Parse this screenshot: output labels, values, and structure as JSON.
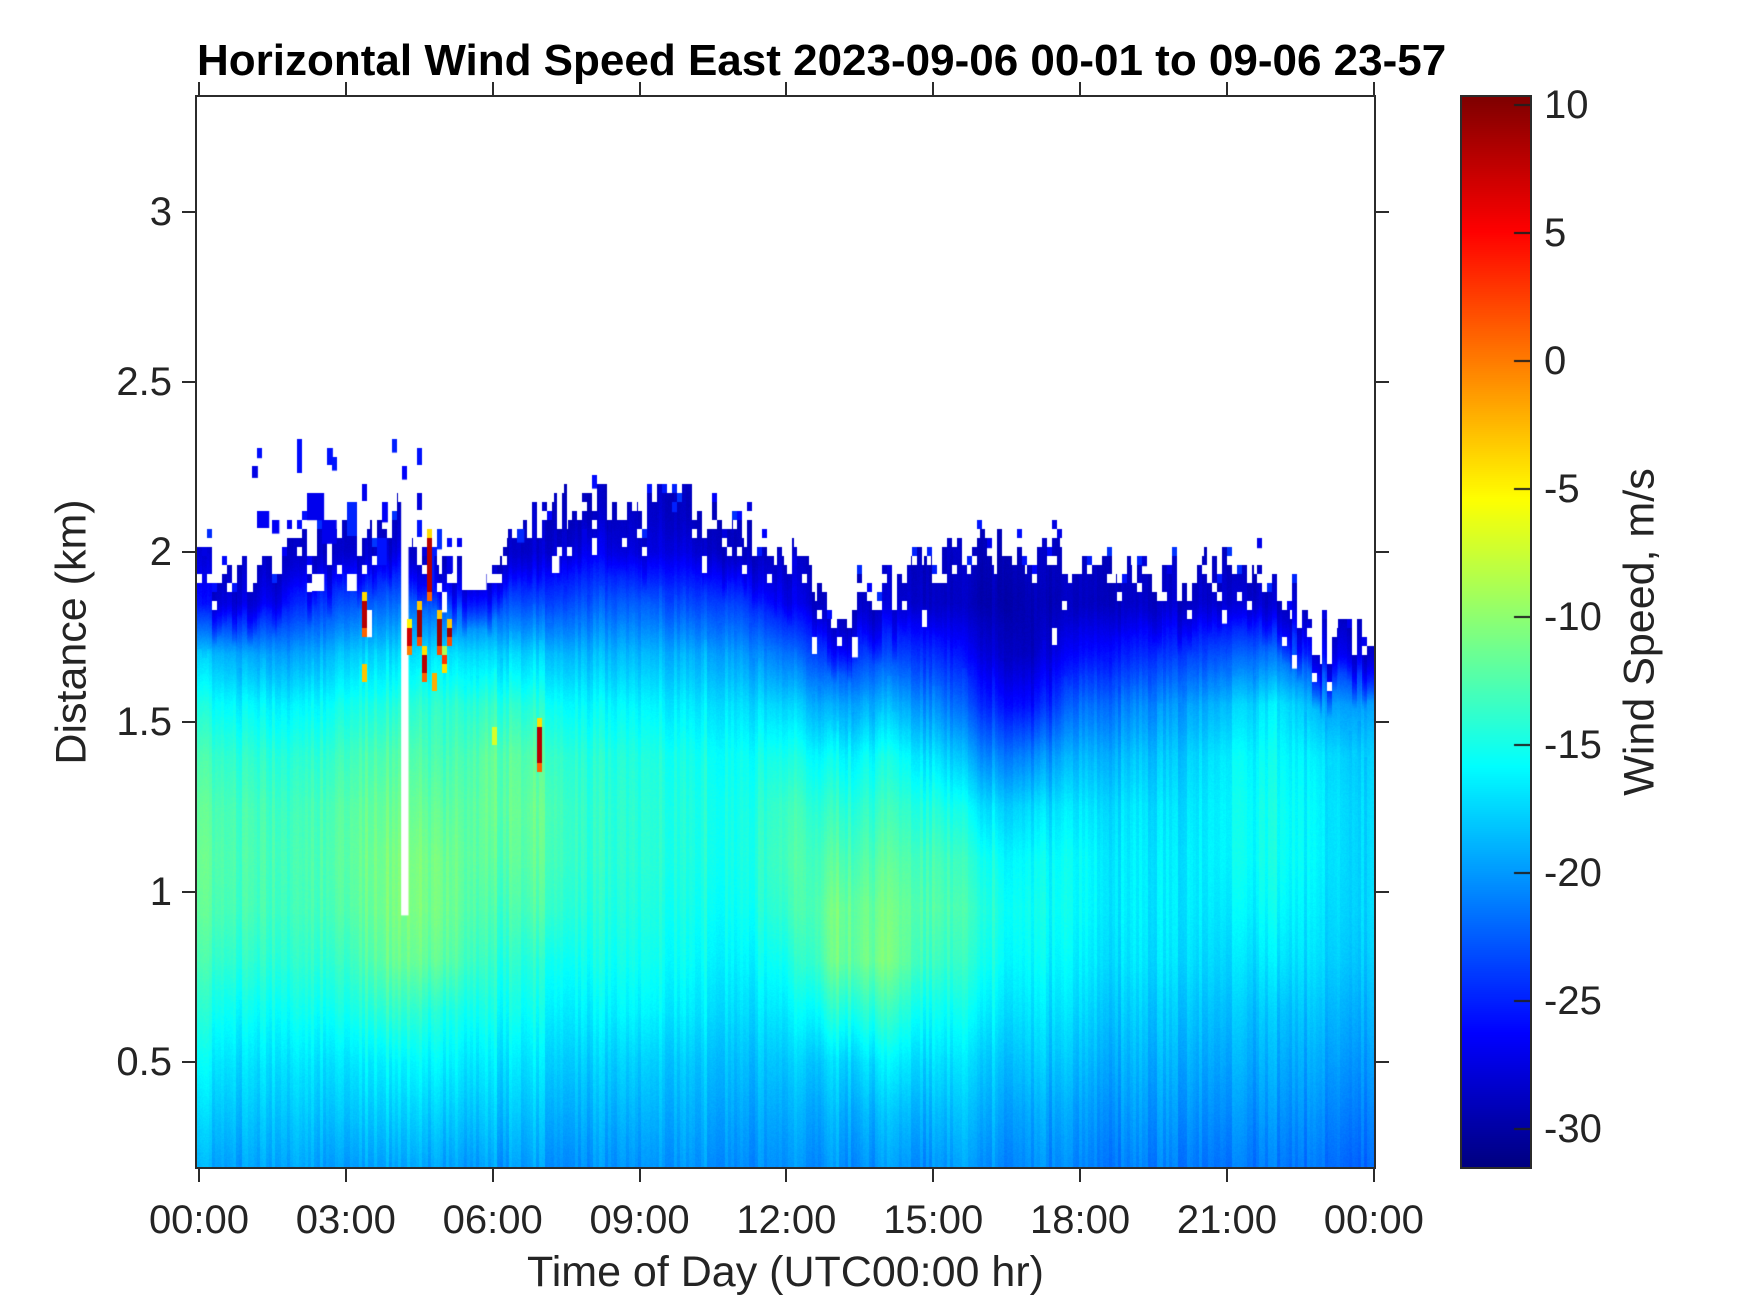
{
  "title": "Horizontal Wind Speed East 2023-09-06 00-01 to 09-06 23-57",
  "axes": {
    "x": {
      "label": "Time of Day (UTC00:00 hr)",
      "tick_hours": [
        0,
        3,
        6,
        9,
        12,
        15,
        18,
        21,
        24
      ],
      "tick_labels": [
        "00:00",
        "03:00",
        "06:00",
        "09:00",
        "12:00",
        "15:00",
        "18:00",
        "21:00",
        "00:00"
      ],
      "lim_hours": [
        0,
        24
      ]
    },
    "y": {
      "label": "Distance (km)",
      "tick_values": [
        0.5,
        1,
        1.5,
        2,
        2.5,
        3
      ],
      "tick_labels": [
        "0.5",
        "1",
        "1.5",
        "2",
        "2.5",
        "3"
      ],
      "lim_km": [
        0.19,
        3.34
      ]
    },
    "colorbar": {
      "label": "Wind Speed, m/s",
      "tick_values": [
        10,
        5,
        0,
        -5,
        -10,
        -15,
        -20,
        -25,
        -30
      ],
      "tick_labels": [
        "10",
        "5",
        "0",
        "-5",
        "-10",
        "-15",
        "-20",
        "-25",
        "-30"
      ],
      "vmin": -31.5,
      "vmax": 10.3,
      "colormap": "jet"
    }
  },
  "style": {
    "background": "#ffffff",
    "axis_color": "#2b2b2b",
    "text_color": "#242424",
    "no_data_color": "#ffffff"
  },
  "chart_data": {
    "type": "heatmap",
    "title": "Horizontal Wind Speed East 2023-09-06 00-01 to 09-06 23-57",
    "xlabel": "Time of Day (UTC00:00 hr)",
    "ylabel": "Distance (km)",
    "value_label": "Wind Speed, m/s",
    "x_hours": [
      0,
      1,
      2,
      3,
      4,
      5,
      6,
      7,
      8,
      9,
      10,
      11,
      12,
      13,
      14,
      15,
      16,
      17,
      18,
      19,
      20,
      21,
      22,
      23,
      24
    ],
    "heights_km": [
      0.2,
      0.35,
      0.5,
      0.65,
      0.8,
      0.95,
      1.1,
      1.25,
      1.4,
      1.55,
      1.7,
      1.85,
      2.0,
      2.15,
      2.3,
      2.45,
      2.6
    ],
    "values_mps": [
      [
        -19.5,
        -18.0,
        -16.5,
        -15.0,
        -13.5,
        -12.5,
        -12.2,
        -12.5,
        -13.5,
        -15.5,
        -18.5,
        -26.0,
        null,
        null,
        null,
        null,
        null
      ],
      [
        -19.5,
        -18.2,
        -17.0,
        -15.5,
        -14.0,
        -13.0,
        -12.8,
        -13.0,
        -14.0,
        -16.0,
        -19.5,
        -27.0,
        null,
        null,
        null,
        null,
        null
      ],
      [
        -19.5,
        -18.2,
        -17.0,
        -15.5,
        -14.2,
        -13.4,
        -13.2,
        -13.5,
        -14.5,
        -16.5,
        -20.0,
        -25.0,
        -28.5,
        null,
        null,
        null,
        null
      ],
      [
        -19.8,
        -18.2,
        -16.8,
        -15.0,
        -13.5,
        -12.4,
        -12.0,
        -12.2,
        -13.2,
        -15.0,
        -18.0,
        -23.0,
        -28.0,
        null,
        null,
        null,
        null
      ],
      [
        -19.5,
        -17.8,
        -16.2,
        -13.8,
        -11.5,
        -10.8,
        -10.8,
        -11.5,
        -12.5,
        -14.5,
        -17.5,
        -22.0,
        -27.0,
        -29.0,
        null,
        null,
        null
      ],
      [
        -19.5,
        -17.8,
        -16.2,
        -14.6,
        -12.0,
        -11.2,
        -11.2,
        -12.0,
        -13.0,
        -14.0,
        -17.0,
        -23.0,
        -28.5,
        null,
        null,
        null,
        null
      ],
      [
        -19.8,
        -18.2,
        -16.8,
        -15.2,
        -14.0,
        -13.0,
        -12.2,
        -11.8,
        -12.0,
        -14.0,
        -17.5,
        -23.0,
        -28.5,
        null,
        null,
        null,
        null
      ],
      [
        -20.0,
        -18.6,
        -17.2,
        -15.8,
        -14.6,
        -13.0,
        -12.2,
        -12.0,
        -12.8,
        -14.8,
        -18.0,
        -23.5,
        -28.0,
        null,
        null,
        null,
        null
      ],
      [
        -20.0,
        -18.8,
        -17.6,
        -16.2,
        -15.0,
        -14.2,
        -13.8,
        -13.8,
        -14.2,
        -15.8,
        -18.5,
        -22.5,
        -26.5,
        -29.0,
        null,
        null,
        null
      ],
      [
        -20.2,
        -19.0,
        -17.8,
        -16.2,
        -15.2,
        -14.6,
        -14.2,
        -14.2,
        -14.6,
        -16.2,
        -18.8,
        -22.5,
        -27.5,
        null,
        null,
        null,
        null
      ],
      [
        -20.2,
        -19.2,
        -18.2,
        -16.8,
        -15.8,
        -15.2,
        -14.8,
        -14.8,
        -15.2,
        -16.8,
        -19.2,
        -23.5,
        -27.5,
        -29.5,
        null,
        null,
        null
      ],
      [
        -20.2,
        -19.2,
        -18.2,
        -17.0,
        -16.0,
        -15.2,
        -14.8,
        -14.8,
        -15.2,
        -16.8,
        -19.5,
        -23.5,
        -28.5,
        null,
        null,
        null,
        null
      ],
      [
        -20.2,
        -19.2,
        -18.0,
        -16.5,
        -15.0,
        -13.5,
        -12.8,
        -13.2,
        -14.8,
        -17.5,
        -21.5,
        -26.5,
        null,
        null,
        null,
        null,
        null
      ],
      [
        -20.2,
        -19.0,
        -17.5,
        -14.5,
        -11.5,
        -11.2,
        -12.5,
        -14.0,
        -16.0,
        -19.5,
        -24.5,
        -28.5,
        null,
        null,
        null,
        null,
        null
      ],
      [
        -20.2,
        -18.8,
        -16.8,
        -14.0,
        -11.2,
        -11.5,
        -12.5,
        -13.8,
        -15.5,
        -19.0,
        -23.5,
        -27.5,
        null,
        null,
        null,
        null,
        null
      ],
      [
        -20.2,
        -18.8,
        -17.2,
        -15.5,
        -13.5,
        -12.5,
        -13.0,
        -14.5,
        -17.0,
        -20.5,
        -24.5,
        -28.5,
        null,
        null,
        null,
        null,
        null
      ],
      [
        -20.2,
        -19.0,
        -17.8,
        -16.2,
        -14.8,
        -14.2,
        -15.0,
        -17.0,
        -20.5,
        -24.5,
        -27.5,
        -29.5,
        null,
        null,
        null,
        null,
        null
      ],
      [
        -20.5,
        -19.5,
        -18.2,
        -17.0,
        -16.0,
        -15.5,
        -16.0,
        -17.5,
        -21.0,
        -26.0,
        -29.0,
        -29.5,
        null,
        null,
        null,
        null,
        null
      ],
      [
        -21.0,
        -20.0,
        -18.8,
        -17.6,
        -16.6,
        -16.0,
        -16.0,
        -17.0,
        -19.0,
        -22.0,
        -26.0,
        -29.0,
        null,
        null,
        null,
        null,
        null
      ],
      [
        -21.0,
        -20.0,
        -19.0,
        -18.0,
        -17.0,
        -16.6,
        -16.6,
        -17.0,
        -18.5,
        -21.0,
        -25.0,
        -28.5,
        null,
        null,
        null,
        null,
        null
      ],
      [
        -21.0,
        -20.0,
        -19.0,
        -18.0,
        -17.0,
        -16.6,
        -16.6,
        -17.0,
        -18.0,
        -20.0,
        -24.0,
        -28.0,
        null,
        null,
        null,
        null,
        null
      ],
      [
        -21.0,
        -20.0,
        -19.0,
        -18.0,
        -17.0,
        -16.2,
        -15.6,
        -15.6,
        -16.0,
        -18.0,
        -22.5,
        -27.5,
        null,
        null,
        null,
        null,
        null
      ],
      [
        -21.0,
        -20.0,
        -19.0,
        -18.0,
        -16.6,
        -15.6,
        -15.0,
        -15.0,
        -15.5,
        -16.5,
        -21.5,
        -27.5,
        null,
        null,
        null,
        null,
        null
      ],
      [
        -21.5,
        -20.5,
        -19.5,
        -18.5,
        -17.5,
        -17.0,
        -16.6,
        -16.6,
        -17.0,
        -19.5,
        -25.0,
        null,
        null,
        null,
        null,
        null,
        null
      ],
      [
        -21.5,
        -20.5,
        -19.5,
        -18.5,
        -17.5,
        -17.0,
        -17.0,
        -17.0,
        -17.5,
        -19.5,
        -26.0,
        null,
        null,
        null,
        null,
        null,
        null
      ]
    ],
    "cloud_top_km": [
      1.93,
      1.93,
      2.0,
      2.02,
      2.1,
      1.94,
      1.96,
      2.08,
      2.16,
      2.1,
      2.12,
      2.05,
      1.96,
      1.83,
      1.87,
      1.97,
      2.0,
      1.96,
      1.93,
      1.94,
      1.9,
      1.97,
      1.87,
      1.72,
      1.76
    ],
    "features": {
      "no_data_gap": {
        "t1": 4.13,
        "t2": 4.28,
        "h1": 0.93,
        "h2": 2.32
      },
      "hotspots": [
        {
          "t": 3.32,
          "h1": 1.75,
          "h2": 1.88,
          "v": 8
        },
        {
          "t": 4.3,
          "h1": 1.7,
          "h2": 1.8,
          "v": 7
        },
        {
          "t": 4.45,
          "h1": 1.72,
          "h2": 1.84,
          "v": 9
        },
        {
          "t": 4.56,
          "h1": 1.64,
          "h2": 1.72,
          "v": 8
        },
        {
          "t": 4.68,
          "h1": 1.84,
          "h2": 2.05,
          "v": 8
        },
        {
          "t": 4.85,
          "h1": 1.7,
          "h2": 1.81,
          "v": 9
        },
        {
          "t": 5.0,
          "h1": 1.63,
          "h2": 1.7,
          "v": 3
        },
        {
          "t": 5.05,
          "h1": 1.73,
          "h2": 1.79,
          "v": 9
        },
        {
          "t": 6.9,
          "h1": 1.35,
          "h2": 1.49,
          "v": 8
        },
        {
          "t": 3.3,
          "h1": 1.62,
          "h2": 1.66,
          "v": -3
        },
        {
          "t": 4.75,
          "h1": 1.59,
          "h2": 1.63,
          "v": -2
        },
        {
          "t": 5.95,
          "h1": 1.43,
          "h2": 1.47,
          "v": -7
        }
      ],
      "cloud_top_speckles": [
        [
          1.05,
          2.25,
          0.12,
          0.035
        ],
        [
          1.2,
          2.31,
          0.08,
          0.03
        ],
        [
          1.15,
          2.13,
          0.25,
          0.05
        ],
        [
          1.45,
          2.1,
          0.15,
          0.04
        ],
        [
          2.05,
          2.32,
          0.07,
          0.1
        ],
        [
          2.2,
          2.18,
          0.35,
          0.08
        ],
        [
          2.6,
          2.3,
          0.12,
          0.05
        ],
        [
          2.75,
          2.28,
          0.08,
          0.04
        ],
        [
          2.5,
          2.08,
          0.3,
          0.07
        ],
        [
          3.0,
          2.15,
          0.2,
          0.1
        ],
        [
          3.3,
          2.2,
          0.1,
          0.05
        ],
        [
          3.6,
          2.05,
          0.2,
          0.08
        ],
        [
          3.7,
          2.15,
          0.12,
          0.06
        ],
        [
          3.95,
          2.33,
          0.08,
          0.04
        ],
        [
          4.1,
          2.25,
          0.07,
          0.04
        ],
        [
          4.45,
          2.3,
          0.06,
          0.05
        ],
        [
          4.45,
          2.18,
          0.06,
          0.05
        ],
        [
          4.47,
          2.08,
          0.06,
          0.05
        ],
        [
          4.7,
          2.0,
          0.15,
          0.1
        ],
        [
          4.85,
          2.07,
          0.1,
          0.06
        ],
        [
          5.1,
          1.98,
          0.12,
          0.05
        ],
        [
          6.5,
          2.07,
          0.15,
          0.04
        ],
        [
          7.8,
          2.06,
          0.08,
          0.04
        ],
        [
          8.05,
          2.23,
          0.06,
          0.04
        ],
        [
          9.7,
          2.15,
          0.06,
          0.03
        ],
        [
          12.1,
          1.98,
          0.06,
          0.03
        ],
        [
          16.1,
          2.04,
          0.06,
          0.03
        ],
        [
          19.3,
          1.99,
          0.06,
          0.03
        ],
        [
          21.6,
          2.03,
          0.06,
          0.03
        ]
      ],
      "data_holes": [
        [
          2.45,
          1.9,
          0.25,
          0.05
        ],
        [
          3.1,
          1.9,
          0.2,
          0.05
        ],
        [
          3.45,
          1.78,
          0.1,
          0.08
        ],
        [
          5.0,
          1.85,
          0.1,
          0.06
        ],
        [
          5.6,
          1.95,
          0.5,
          0.1
        ],
        [
          7.3,
          1.95,
          0.15,
          0.05
        ],
        [
          8.1,
          2.02,
          0.1,
          0.05
        ],
        [
          10.3,
          1.95,
          0.1,
          0.05
        ],
        [
          12.6,
          1.72,
          0.1,
          0.05
        ],
        [
          13.4,
          1.72,
          0.12,
          0.06
        ],
        [
          14.8,
          1.8,
          0.1,
          0.05
        ],
        [
          17.5,
          1.75,
          0.1,
          0.05
        ],
        [
          20.9,
          1.8,
          0.08,
          0.04
        ],
        [
          22.4,
          1.68,
          0.08,
          0.04
        ]
      ]
    }
  }
}
